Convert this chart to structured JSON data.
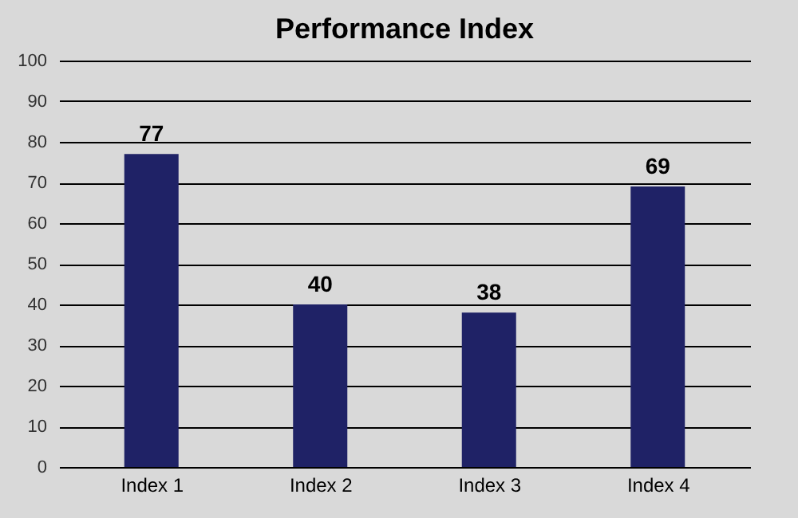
{
  "chart_data": {
    "type": "bar",
    "title": "Performance Index",
    "categories": [
      "Index 1",
      "Index 2",
      "Index 3",
      "Index 4"
    ],
    "values": [
      77,
      40,
      38,
      69
    ],
    "color": "#1f2266",
    "ylim": [
      0,
      100
    ],
    "yticks": [
      0,
      10,
      20,
      30,
      40,
      50,
      60,
      70,
      80,
      90,
      100
    ],
    "grid": "y",
    "data_labels": true
  }
}
